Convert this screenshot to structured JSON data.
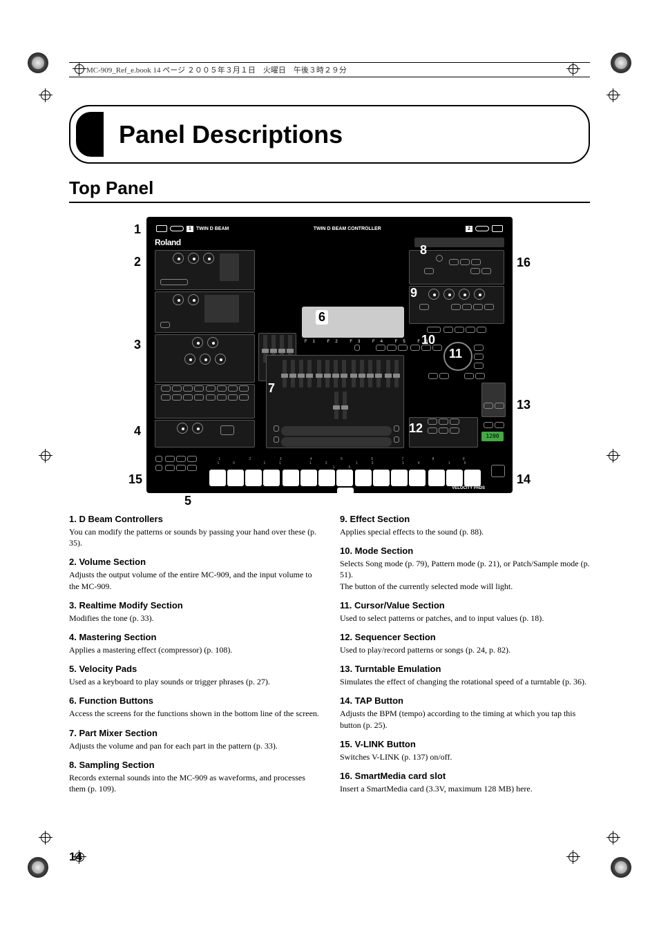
{
  "book_header": "MC-909_Ref_e.book 14 ページ ２００５年３月１日　火曜日　午後３時２９分",
  "title": "Panel Descriptions",
  "section": "Top Panel",
  "page_number": "14",
  "diagram": {
    "topbar_twin": "TWIN D BEAM CONTROLLER",
    "brand": "Roland",
    "callouts": {
      "c1": "1",
      "c2": "2",
      "c3": "3",
      "c4": "4",
      "c5": "5",
      "c6": "6",
      "c7": "7",
      "c8": "8",
      "c9": "9",
      "c10": "10",
      "c11": "11",
      "c12": "12",
      "c13": "13",
      "c14": "14",
      "c15": "15",
      "c16": "16"
    }
  },
  "left": [
    {
      "title": "1. D Beam Controllers",
      "body": "You can modify the patterns or sounds by passing your hand over these (p. 35)."
    },
    {
      "title": "2. Volume Section",
      "body": "Adjusts the output volume of the entire MC-909, and the input volume to the MC-909."
    },
    {
      "title": "3. Realtime Modify Section",
      "body": "Modifies the tone (p. 33)."
    },
    {
      "title": "4. Mastering Section",
      "body": "Applies a mastering effect (compressor) (p. 108)."
    },
    {
      "title": "5. Velocity Pads",
      "body": "Used as a keyboard to play sounds or trigger phrases (p. 27)."
    },
    {
      "title": "6. Function Buttons",
      "body": "Access the screens for the functions shown in the bottom line of the screen."
    },
    {
      "title": "7. Part Mixer Section",
      "body": "Adjusts the volume and pan for each part in the pattern (p. 33)."
    },
    {
      "title": "8. Sampling Section",
      "body": "Records external sounds into the MC-909 as waveforms, and processes them (p. 109)."
    }
  ],
  "right": [
    {
      "title": "9. Effect Section",
      "body": "Applies special effects to the sound (p. 88)."
    },
    {
      "title": "10. Mode Section",
      "body": "Selects Song mode (p. 79), Pattern mode (p. 21), or Patch/Sample mode (p. 51).\nThe button of the currently selected mode will light."
    },
    {
      "title": "11. Cursor/Value Section",
      "body": "Used to select patterns or patches, and to input values (p. 18)."
    },
    {
      "title": "12. Sequencer Section",
      "body": "Used to play/record patterns or songs (p. 24, p. 82)."
    },
    {
      "title": "13. Turntable Emulation",
      "body": "Simulates the effect of changing the rotational speed of a turntable (p. 36)."
    },
    {
      "title": "14. TAP Button",
      "body": "Adjusts the BPM (tempo) according to the timing at which you tap this button (p. 25)."
    },
    {
      "title": "15. V-LINK Button",
      "body": "Switches V-LINK (p. 137) on/off."
    },
    {
      "title": "16. SmartMedia card slot",
      "body": "Insert a SmartMedia card (3.3V, maximum 128 MB) here."
    }
  ]
}
